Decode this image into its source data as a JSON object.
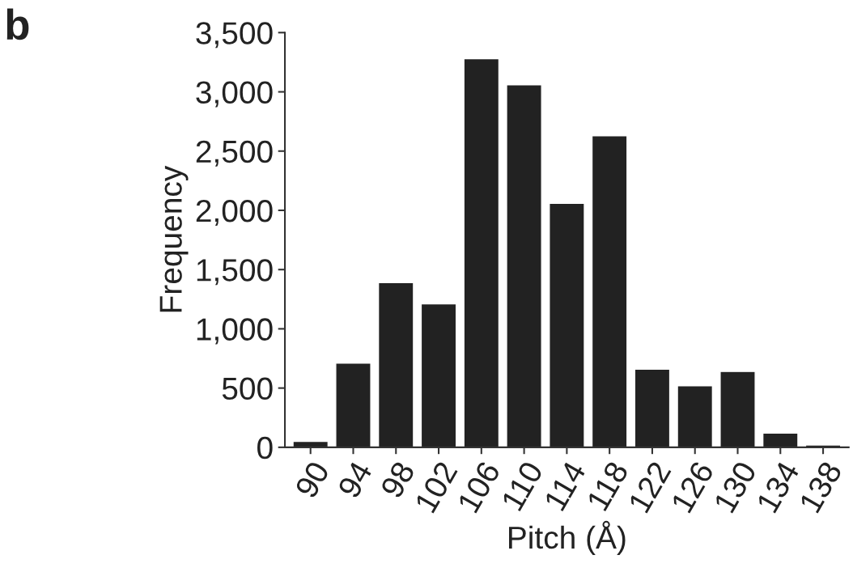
{
  "chart_data": {
    "type": "bar",
    "xlabel": "Pitch (Å)",
    "ylabel": "Frequency",
    "annotations": [
      "b"
    ],
    "categories": [
      "90",
      "94",
      "98",
      "102",
      "106",
      "110",
      "114",
      "118",
      "122",
      "126",
      "130",
      "134",
      "138"
    ],
    "values": [
      50,
      710,
      1390,
      1210,
      3280,
      3060,
      2060,
      2630,
      660,
      520,
      640,
      120,
      20
    ],
    "color": "#222222",
    "ylim": [
      0,
      3500
    ],
    "yticks": [
      {
        "value": 0,
        "label": "0"
      },
      {
        "value": 500,
        "label": "500"
      },
      {
        "value": 1000,
        "label": "1,000"
      },
      {
        "value": 1500,
        "label": "1,500"
      },
      {
        "value": 2000,
        "label": "2,000"
      },
      {
        "value": 2500,
        "label": "2,500"
      },
      {
        "value": 3000,
        "label": "3,000"
      },
      {
        "value": 3500,
        "label": "3,500"
      }
    ],
    "grid": false,
    "legend": false
  }
}
